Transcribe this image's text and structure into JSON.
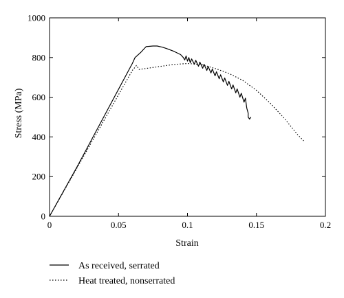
{
  "chart_data": {
    "type": "line",
    "title": "",
    "xlabel": "Strain",
    "ylabel": "Stress (MPa)",
    "xlim": [
      0,
      0.2
    ],
    "ylim": [
      0,
      1000
    ],
    "xticks": [
      0,
      0.05,
      0.1,
      0.15,
      0.2
    ],
    "xtick_labels": [
      "0",
      "0.05",
      "0.1",
      "0.15",
      "0.2"
    ],
    "yticks": [
      0,
      200,
      400,
      600,
      800,
      1000
    ],
    "ytick_labels": [
      "0",
      "200",
      "400",
      "600",
      "800",
      "1000"
    ],
    "grid": false,
    "legend_position": "bottom-left, below plot",
    "series": [
      {
        "name": "As received, serrated",
        "style": "solid",
        "color": "#000000",
        "points": [
          [
            0,
            0
          ],
          [
            0.02,
            250
          ],
          [
            0.04,
            510
          ],
          [
            0.06,
            770
          ],
          [
            0.062,
            800
          ],
          [
            0.066,
            825
          ],
          [
            0.07,
            855
          ],
          [
            0.075,
            858
          ],
          [
            0.078,
            858
          ],
          [
            0.082,
            852
          ],
          [
            0.085,
            845
          ],
          [
            0.09,
            832
          ],
          [
            0.095,
            815
          ],
          [
            0.097,
            800
          ],
          [
            0.098,
            788
          ],
          [
            0.099,
            808
          ],
          [
            0.1,
            782
          ],
          [
            0.101,
            800
          ],
          [
            0.102,
            774
          ],
          [
            0.103,
            793
          ],
          [
            0.105,
            766
          ],
          [
            0.106,
            786
          ],
          [
            0.108,
            756
          ],
          [
            0.109,
            777
          ],
          [
            0.111,
            746
          ],
          [
            0.112,
            766
          ],
          [
            0.114,
            735
          ],
          [
            0.115,
            755
          ],
          [
            0.117,
            722
          ],
          [
            0.118,
            742
          ],
          [
            0.12,
            708
          ],
          [
            0.121,
            728
          ],
          [
            0.123,
            693
          ],
          [
            0.124,
            713
          ],
          [
            0.126,
            677
          ],
          [
            0.127,
            697
          ],
          [
            0.129,
            660
          ],
          [
            0.13,
            680
          ],
          [
            0.132,
            642
          ],
          [
            0.133,
            662
          ],
          [
            0.135,
            622
          ],
          [
            0.136,
            642
          ],
          [
            0.138,
            600
          ],
          [
            0.139,
            620
          ],
          [
            0.141,
            575
          ],
          [
            0.142,
            595
          ],
          [
            0.143,
            545
          ],
          [
            0.144,
            520
          ],
          [
            0.144,
            500
          ],
          [
            0.145,
            490
          ],
          [
            0.146,
            500
          ]
        ]
      },
      {
        "name": "Heat treated, nonserrated",
        "style": "dotted",
        "color": "#000000",
        "points": [
          [
            0,
            0
          ],
          [
            0.02,
            245
          ],
          [
            0.04,
            490
          ],
          [
            0.06,
            735
          ],
          [
            0.063,
            760
          ],
          [
            0.065,
            740
          ],
          [
            0.07,
            745
          ],
          [
            0.08,
            755
          ],
          [
            0.09,
            765
          ],
          [
            0.1,
            770
          ],
          [
            0.11,
            765
          ],
          [
            0.12,
            745
          ],
          [
            0.13,
            720
          ],
          [
            0.14,
            685
          ],
          [
            0.15,
            635
          ],
          [
            0.16,
            570
          ],
          [
            0.17,
            495
          ],
          [
            0.18,
            410
          ],
          [
            0.185,
            375
          ]
        ]
      }
    ]
  }
}
